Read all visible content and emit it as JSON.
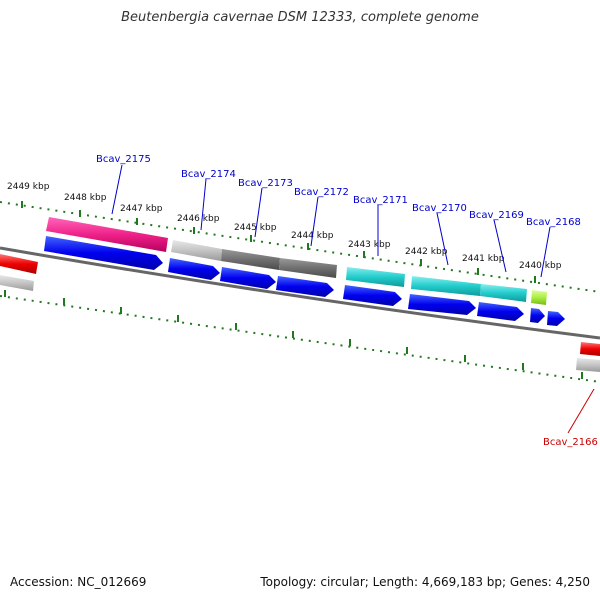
{
  "title": "Beutenbergia cavernae DSM 12333, complete genome",
  "footer": {
    "accession": "Accession: NC_012669",
    "summary": "Topology: circular; Length: 4,669,183 bp; Genes: 4,250"
  },
  "colors": {
    "backbone": "#707070",
    "tick": "#1f7a1f",
    "label_blue": "#0000cc",
    "label_red": "#cc0000"
  },
  "kbp_labels": [
    "2449 kbp",
    "2448 kbp",
    "2447 kbp",
    "2446 kbp",
    "2445 kbp",
    "2444 kbp",
    "2443 kbp",
    "2442 kbp",
    "2441 kbp",
    "2440 kbp"
  ],
  "genes": [
    {
      "name": "Bcav_2175",
      "color": "#0000cc"
    },
    {
      "name": "Bcav_2174",
      "color": "#0000cc"
    },
    {
      "name": "Bcav_2173",
      "color": "#0000cc"
    },
    {
      "name": "Bcav_2172",
      "color": "#0000cc"
    },
    {
      "name": "Bcav_2171",
      "color": "#0000cc"
    },
    {
      "name": "Bcav_2170",
      "color": "#0000cc"
    },
    {
      "name": "Bcav_2169",
      "color": "#0000cc"
    },
    {
      "name": "Bcav_2168",
      "color": "#0000cc"
    },
    {
      "name": "Bcav_2166",
      "color": "#cc0000"
    }
  ],
  "feature_colors": {
    "pink": "#ee2288",
    "lightgray": "#c4c4c4",
    "darkgray": "#707070",
    "cyan": "#22cccc",
    "lime": "#aaee44",
    "red": "#ee0000",
    "blue": "#0000ee"
  }
}
